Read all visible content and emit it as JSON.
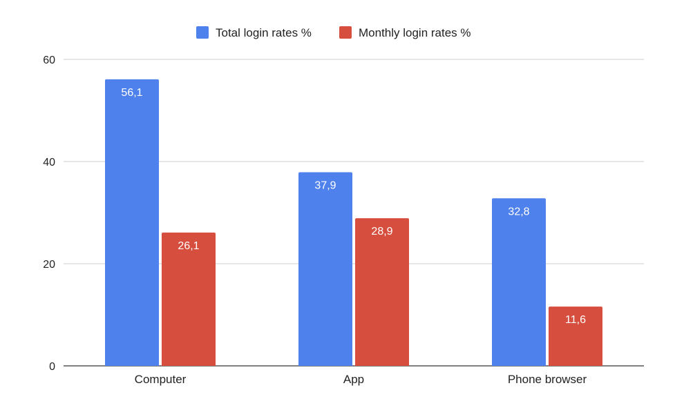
{
  "chart_data": {
    "type": "bar",
    "categories": [
      "Computer",
      "App",
      "Phone browser"
    ],
    "series": [
      {
        "name": "Total login rates %",
        "values": [
          56.1,
          37.9,
          32.8
        ],
        "labels": [
          "56,1",
          "37,9",
          "32,8"
        ],
        "color": "#4f81ec"
      },
      {
        "name": "Monthly login rates %",
        "values": [
          26.1,
          28.9,
          11.6
        ],
        "labels": [
          "26,1",
          "28,9",
          "11,6"
        ],
        "color": "#d64f3e"
      }
    ],
    "yticks": [
      "0",
      "20",
      "40",
      "60"
    ],
    "ylim": [
      0,
      60
    ],
    "grid": true,
    "legend_position": "top-center",
    "data_labels": "inside-top"
  }
}
